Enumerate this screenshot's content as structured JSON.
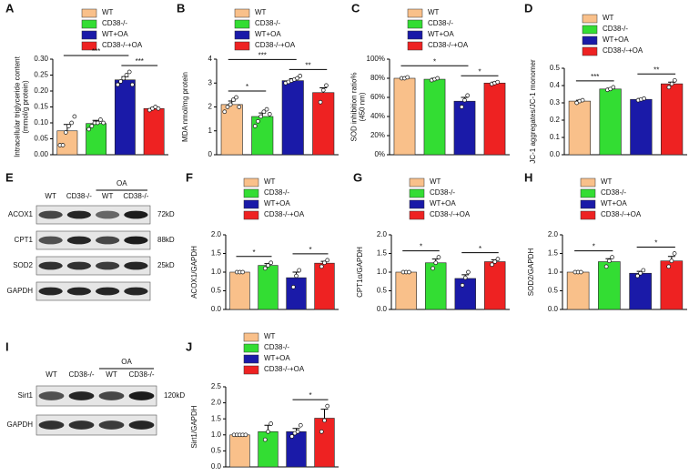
{
  "chart_data": [
    {
      "type": "bar",
      "panel": "A",
      "ylabel": [
        "Intracellular triglyceride content",
        "(mmol/g protein)"
      ],
      "ylim": [
        0,
        0.3
      ],
      "yticks": [
        {
          "value": 0,
          "label": "0.00"
        },
        {
          "value": 0.05,
          "label": "0.05"
        },
        {
          "value": 0.1,
          "label": "0.10"
        },
        {
          "value": 0.15,
          "label": "0.15"
        },
        {
          "value": 0.2,
          "label": "0.20"
        },
        {
          "value": 0.25,
          "label": "0.25"
        },
        {
          "value": 0.3,
          "label": "0.30"
        }
      ],
      "series": [
        {
          "name": "WT",
          "color": "#f9c08a",
          "value": 0.075,
          "error": 0.02,
          "points": [
            0.03,
            0.03,
            0.07,
            0.09,
            0.1,
            0.12
          ]
        },
        {
          "name": "CD38-/-",
          "color": "#33dd33",
          "value": 0.098,
          "error": 0.01,
          "points": [
            0.08,
            0.09,
            0.1,
            0.1,
            0.11,
            0.1
          ]
        },
        {
          "name": "WT+OA",
          "color": "#1a1aa8",
          "value": 0.235,
          "error": 0.01,
          "points": [
            0.22,
            0.23,
            0.24,
            0.25,
            0.26,
            0.22
          ]
        },
        {
          "name": "CD38-/-+OA",
          "color": "#ee2222",
          "value": 0.145,
          "error": 0.003,
          "points": [
            0.14,
            0.145,
            0.15,
            0.145
          ]
        }
      ],
      "annotations": [
        {
          "label": "***",
          "between": [
            2,
            3
          ]
        },
        {
          "label": "***",
          "between": [
            0,
            2
          ]
        }
      ]
    },
    {
      "type": "bar",
      "panel": "B",
      "ylabel": [
        "MDA nmol/mg protein"
      ],
      "ylim": [
        0,
        4
      ],
      "yticks": [
        0,
        1,
        2,
        3,
        4
      ],
      "series": [
        {
          "name": "WT",
          "color": "#f9c08a",
          "value": 2.1,
          "error": 0.15,
          "points": [
            1.8,
            2.0,
            2.1,
            2.3,
            2.4,
            2.0
          ]
        },
        {
          "name": "CD38-/-",
          "color": "#33dd33",
          "value": 1.6,
          "error": 0.15,
          "points": [
            1.2,
            1.4,
            1.6,
            1.8,
            1.9,
            1.7
          ]
        },
        {
          "name": "WT+OA",
          "color": "#1a1aa8",
          "value": 3.1,
          "error": 0.08,
          "points": [
            3.0,
            3.05,
            3.1,
            3.15,
            3.2,
            3.3
          ]
        },
        {
          "name": "CD38-/-+OA",
          "color": "#ee2222",
          "value": 2.6,
          "error": 0.2,
          "points": [
            2.2,
            2.7,
            2.9
          ]
        }
      ],
      "annotations": [
        {
          "label": "*",
          "between": [
            0,
            1
          ]
        },
        {
          "label": "**",
          "between": [
            2,
            3
          ]
        },
        {
          "label": "***",
          "between": [
            0,
            2
          ]
        }
      ]
    },
    {
      "type": "bar",
      "panel": "C",
      "ylabel": [
        "SOD inhibition ratio%",
        "(450 nm)"
      ],
      "ylim": [
        0,
        100
      ],
      "yticks": [
        {
          "value": 0,
          "label": "0%"
        },
        {
          "value": 20,
          "label": "20%"
        },
        {
          "value": 40,
          "label": "40%"
        },
        {
          "value": 60,
          "label": "60%"
        },
        {
          "value": 80,
          "label": "80%"
        },
        {
          "value": 100,
          "label": "100%"
        }
      ],
      "series": [
        {
          "name": "WT",
          "color": "#f9c08a",
          "value": 80,
          "error": 1,
          "points": [
            80,
            80,
            81
          ]
        },
        {
          "name": "CD38-/-",
          "color": "#33dd33",
          "value": 79,
          "error": 1,
          "points": [
            78,
            79,
            80
          ]
        },
        {
          "name": "WT+OA",
          "color": "#1a1aa8",
          "value": 56,
          "error": 4,
          "points": [
            50,
            57,
            62
          ]
        },
        {
          "name": "CD38-/-+OA",
          "color": "#ee2222",
          "value": 75,
          "error": 1,
          "points": [
            74,
            75,
            76
          ]
        }
      ],
      "annotations": [
        {
          "label": "*",
          "between": [
            2,
            3
          ]
        },
        {
          "label": "*",
          "between": [
            0,
            2
          ]
        }
      ]
    },
    {
      "type": "bar",
      "panel": "D",
      "ylabel": [
        "JC-1 aggregates/JC-1 monomer"
      ],
      "ylim": [
        0,
        0.5
      ],
      "yticks": [
        {
          "value": 0,
          "label": "0.0"
        },
        0.1,
        0.2,
        0.3,
        0.4,
        0.5
      ],
      "series": [
        {
          "name": "WT",
          "color": "#f9c08a",
          "value": 0.31,
          "error": 0.005,
          "points": [
            0.3,
            0.31,
            0.315
          ]
        },
        {
          "name": "CD38-/-",
          "color": "#33dd33",
          "value": 0.38,
          "error": 0.005,
          "points": [
            0.375,
            0.38,
            0.39
          ]
        },
        {
          "name": "WT+OA",
          "color": "#1a1aa8",
          "value": 0.32,
          "error": 0.005,
          "points": [
            0.315,
            0.32,
            0.325
          ]
        },
        {
          "name": "CD38-/-+OA",
          "color": "#ee2222",
          "value": 0.41,
          "error": 0.01,
          "points": [
            0.39,
            0.41,
            0.43
          ]
        }
      ],
      "annotations": [
        {
          "label": "***",
          "between": [
            0,
            1
          ]
        },
        {
          "label": "**",
          "between": [
            2,
            3
          ]
        }
      ]
    },
    {
      "type": "bar",
      "panel": "F",
      "ylabel": [
        "ACOX1/GAPDH"
      ],
      "ylim": [
        0,
        2
      ],
      "yticks": [
        {
          "value": 0,
          "label": "0.0"
        },
        0.5,
        {
          "value": 1,
          "label": "1.0"
        },
        1.5,
        {
          "value": 2,
          "label": "2.0"
        }
      ],
      "series": [
        {
          "name": "WT",
          "color": "#f9c08a",
          "value": 1.0,
          "error": 0,
          "points": [
            1,
            1,
            1
          ]
        },
        {
          "name": "CD38-/-",
          "color": "#33dd33",
          "value": 1.18,
          "error": 0.05,
          "points": [
            1.1,
            1.18,
            1.25
          ]
        },
        {
          "name": "WT+OA",
          "color": "#1a1aa8",
          "value": 0.85,
          "error": 0.15,
          "points": [
            0.6,
            0.9,
            1.05
          ]
        },
        {
          "name": "CD38-/-+OA",
          "color": "#ee2222",
          "value": 1.24,
          "error": 0.05,
          "points": [
            1.15,
            1.25,
            1.32
          ]
        }
      ],
      "annotations": [
        {
          "label": "*",
          "between": [
            0,
            1
          ]
        },
        {
          "label": "*",
          "between": [
            2,
            3
          ]
        }
      ]
    },
    {
      "type": "bar",
      "panel": "G",
      "ylabel": [
        "CPT1α/GAPDH"
      ],
      "ylim": [
        0,
        2
      ],
      "yticks": [
        {
          "value": 0,
          "label": "0.0"
        },
        0.5,
        {
          "value": 1,
          "label": "1.0"
        },
        1.5,
        {
          "value": 2,
          "label": "2.0"
        }
      ],
      "series": [
        {
          "name": "WT",
          "color": "#f9c08a",
          "value": 1.0,
          "error": 0,
          "points": [
            1,
            1,
            1
          ]
        },
        {
          "name": "CD38-/-",
          "color": "#33dd33",
          "value": 1.25,
          "error": 0.1,
          "points": [
            1.1,
            1.25,
            1.4
          ]
        },
        {
          "name": "WT+OA",
          "color": "#1a1aa8",
          "value": 0.83,
          "error": 0.1,
          "points": [
            0.65,
            0.85,
            1.0
          ]
        },
        {
          "name": "CD38-/-+OA",
          "color": "#ee2222",
          "value": 1.28,
          "error": 0.05,
          "points": [
            1.2,
            1.28,
            1.35
          ]
        }
      ],
      "annotations": [
        {
          "label": "*",
          "between": [
            0,
            1
          ]
        },
        {
          "label": "*",
          "between": [
            2,
            3
          ]
        }
      ]
    },
    {
      "type": "bar",
      "panel": "H",
      "ylabel": [
        "SOD2/GAPDH"
      ],
      "ylim": [
        0,
        2
      ],
      "yticks": [
        {
          "value": 0,
          "label": "0.0"
        },
        0.5,
        {
          "value": 1,
          "label": "1.0"
        },
        1.5,
        {
          "value": 2,
          "label": "2.0"
        }
      ],
      "series": [
        {
          "name": "WT",
          "color": "#f9c08a",
          "value": 1.0,
          "error": 0,
          "points": [
            1,
            1,
            1
          ]
        },
        {
          "name": "CD38-/-",
          "color": "#33dd33",
          "value": 1.28,
          "error": 0.08,
          "points": [
            1.15,
            1.3,
            1.4
          ]
        },
        {
          "name": "WT+OA",
          "color": "#1a1aa8",
          "value": 0.97,
          "error": 0.05,
          "points": [
            0.9,
            0.97,
            1.05
          ]
        },
        {
          "name": "CD38-/-+OA",
          "color": "#ee2222",
          "value": 1.3,
          "error": 0.12,
          "points": [
            1.15,
            1.3,
            1.5
          ]
        }
      ],
      "annotations": [
        {
          "label": "*",
          "between": [
            0,
            1
          ]
        },
        {
          "label": "*",
          "between": [
            2,
            3
          ]
        }
      ]
    },
    {
      "type": "bar",
      "panel": "J",
      "ylabel": [
        "Sirt1/GAPDH"
      ],
      "ylim": [
        0,
        2.5
      ],
      "yticks": [
        {
          "value": 0,
          "label": "0.0"
        },
        0.5,
        {
          "value": 1,
          "label": "1.0"
        },
        1.5,
        {
          "value": 2,
          "label": "2.0"
        },
        2.5
      ],
      "series": [
        {
          "name": "WT",
          "color": "#f9c08a",
          "value": 1.0,
          "error": 0,
          "points": [
            1,
            1,
            1,
            1,
            1
          ]
        },
        {
          "name": "CD38-/-",
          "color": "#33dd33",
          "value": 1.1,
          "error": 0.2,
          "points": [
            0.85,
            1.1,
            1.35
          ]
        },
        {
          "name": "WT+OA",
          "color": "#1a1aa8",
          "value": 1.1,
          "error": 0.1,
          "points": [
            0.95,
            1.05,
            1.1,
            1.3
          ]
        },
        {
          "name": "CD38-/-+OA",
          "color": "#ee2222",
          "value": 1.52,
          "error": 0.28,
          "points": [
            1.1,
            1.45,
            1.9
          ]
        }
      ],
      "annotations": [
        {
          "label": "*",
          "between": [
            2,
            3
          ]
        }
      ]
    }
  ],
  "blots": [
    {
      "panel": "E",
      "lanes": [
        "WT",
        "CD38-/-",
        "WT",
        "CD38-/-"
      ],
      "group": {
        "label": "OA",
        "lanes": [
          2,
          3
        ]
      },
      "rows": [
        {
          "label": "ACOX1",
          "size": "72kD"
        },
        {
          "label": "CPT1",
          "size": "88kD"
        },
        {
          "label": "SOD2",
          "size": "25kD"
        },
        {
          "label": "GAPDH"
        }
      ]
    },
    {
      "panel": "I",
      "lanes": [
        "WT",
        "CD38-/-",
        "WT",
        "CD38-/-"
      ],
      "group": {
        "label": "OA",
        "lanes": [
          2,
          3
        ]
      },
      "rows": [
        {
          "label": "Sirt1",
          "size": "120kD"
        },
        {
          "label": "GAPDH"
        }
      ]
    }
  ]
}
